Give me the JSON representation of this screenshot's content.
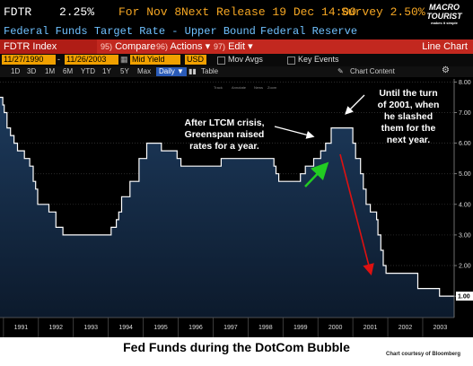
{
  "header": {
    "ticker": "FDTR",
    "value": "2.25%",
    "for_label": "For Nov 8",
    "next_release": "Next Release 19 Dec 14:00",
    "survey": "Survey 2.50%",
    "logo_line1": "MACRO",
    "logo_line2": "TOURIST",
    "logo_sub": "makes it simple"
  },
  "subheader": {
    "title": "Federal Funds Target Rate - Upper Bound",
    "source": "Federal Reserve"
  },
  "menu": {
    "index_label": "FDTR Index",
    "compare_num": "95)",
    "compare_label": "Compare",
    "actions_num": "96)",
    "actions_label": "Actions ▾",
    "edit_num": "97)",
    "edit_label": "Edit ▾",
    "chart_type": "Line Chart"
  },
  "controls": {
    "start_date": "11/27/1990",
    "end_date": "11/26/2003",
    "field": "Mid Yield",
    "currency": "USD",
    "mov_avgs": "Mov Avgs",
    "key_events": "Key Events"
  },
  "ranges": {
    "items": [
      "1D",
      "3D",
      "1M",
      "6M",
      "YTD",
      "1Y",
      "5Y",
      "Max"
    ],
    "frequency": "Daily ▼",
    "table": "Table",
    "chart_content": "Chart Content"
  },
  "legend_tiny": [
    "Track",
    "Annotate",
    "News",
    "Zoom"
  ],
  "annotations": {
    "left": [
      "After LTCM crisis,",
      "Greenspan raised",
      "rates for a year."
    ],
    "right": [
      "Until the turn",
      "of 2001, when",
      "he slashed",
      "them for the",
      "next year."
    ]
  },
  "footer": {
    "title": "Fed Funds during the DotCom Bubble",
    "credit": "Chart courtesy of Bloomberg"
  },
  "colors": {
    "background": "#000000",
    "area_fill_top": "#1d3a5c",
    "area_fill_bottom": "#0c1a2c",
    "line": "#ffffff",
    "green_arrow": "#22cc22",
    "red_arrow": "#dd1111",
    "menu_bar": "#c2281f",
    "accent_orange": "#f5a623",
    "header_blue": "#6fc1ff"
  },
  "chart_data": {
    "type": "area",
    "title": "Federal Funds Target Rate - Upper Bound",
    "xlabel": "",
    "ylabel": "",
    "x_ticks": [
      "1991",
      "1992",
      "1993",
      "1994",
      "1995",
      "1996",
      "1997",
      "1998",
      "1999",
      "2000",
      "2001",
      "2002",
      "2003"
    ],
    "y_ticks": [
      "1.00",
      "2.00",
      "3.00",
      "4.00",
      "5.00",
      "6.00",
      "7.00",
      "8.00"
    ],
    "ylim": [
      0.3,
      8.1
    ],
    "xlim": [
      1990.9,
      2003.9
    ],
    "last_value_label": "1.00",
    "series": [
      {
        "points": [
          [
            1990.9,
            7.5
          ],
          [
            1990.98,
            7.25
          ],
          [
            1991.02,
            7.0
          ],
          [
            1991.1,
            6.5
          ],
          [
            1991.2,
            6.25
          ],
          [
            1991.3,
            6.0
          ],
          [
            1991.4,
            5.75
          ],
          [
            1991.6,
            5.5
          ],
          [
            1991.75,
            5.25
          ],
          [
            1991.85,
            4.75
          ],
          [
            1991.92,
            4.5
          ],
          [
            1991.98,
            4.0
          ],
          [
            1992.3,
            3.75
          ],
          [
            1992.5,
            3.25
          ],
          [
            1992.7,
            3.0
          ],
          [
            1994.08,
            3.25
          ],
          [
            1994.23,
            3.5
          ],
          [
            1994.3,
            3.75
          ],
          [
            1994.38,
            4.25
          ],
          [
            1994.62,
            4.75
          ],
          [
            1994.88,
            5.5
          ],
          [
            1995.1,
            6.0
          ],
          [
            1995.52,
            5.75
          ],
          [
            1995.97,
            5.5
          ],
          [
            1996.08,
            5.25
          ],
          [
            1997.23,
            5.5
          ],
          [
            1998.74,
            5.25
          ],
          [
            1998.8,
            5.0
          ],
          [
            1998.88,
            4.75
          ],
          [
            1999.5,
            5.0
          ],
          [
            1999.64,
            5.25
          ],
          [
            1999.88,
            5.5
          ],
          [
            2000.08,
            5.75
          ],
          [
            2000.22,
            6.0
          ],
          [
            2000.38,
            6.5
          ],
          [
            2001.0,
            6.0
          ],
          [
            2001.08,
            5.5
          ],
          [
            2001.22,
            5.0
          ],
          [
            2001.3,
            4.5
          ],
          [
            2001.38,
            4.0
          ],
          [
            2001.5,
            3.75
          ],
          [
            2001.68,
            3.5
          ],
          [
            2001.72,
            3.0
          ],
          [
            2001.8,
            2.5
          ],
          [
            2001.87,
            2.0
          ],
          [
            2001.95,
            1.75
          ],
          [
            2002.86,
            1.25
          ],
          [
            2003.48,
            1.0
          ],
          [
            2003.9,
            1.0
          ]
        ]
      }
    ]
  }
}
